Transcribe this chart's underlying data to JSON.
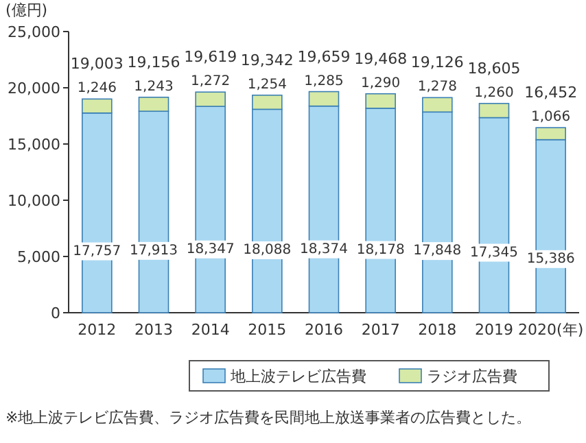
{
  "chart_data": {
    "type": "bar",
    "stacked": true,
    "ylabel": "(億円)",
    "categories": [
      "2012",
      "2013",
      "2014",
      "2015",
      "2016",
      "2017",
      "2018",
      "2019",
      "2020(年)"
    ],
    "series": [
      {
        "name": "地上波テレビ広告費",
        "color": "#a9d8f2",
        "values": [
          17757,
          17913,
          18347,
          18088,
          18374,
          18178,
          17848,
          17345,
          15386
        ],
        "value_labels": [
          "17,757",
          "17,913",
          "18,347",
          "18,088",
          "18,374",
          "18,178",
          "17,848",
          "17,345",
          "15,386"
        ]
      },
      {
        "name": "ラジオ広告費",
        "color": "#d6e9a6",
        "values": [
          1246,
          1243,
          1272,
          1254,
          1285,
          1290,
          1278,
          1260,
          1066
        ],
        "value_labels": [
          "1,246",
          "1,243",
          "1,272",
          "1,254",
          "1,285",
          "1,290",
          "1,278",
          "1,260",
          "1,066"
        ]
      }
    ],
    "totals": [
      "19,003",
      "19,156",
      "19,619",
      "19,342",
      "19,659",
      "19,468",
      "19,126",
      "18,605",
      "16,452"
    ],
    "ylim": [
      0,
      25000
    ],
    "yticks": [
      {
        "value": 0,
        "label": "0"
      },
      {
        "value": 5000,
        "label": "5,000"
      },
      {
        "value": 10000,
        "label": "10,000"
      },
      {
        "value": 15000,
        "label": "15,000"
      },
      {
        "value": 20000,
        "label": "20,000"
      },
      {
        "value": 25000,
        "label": "25,000"
      }
    ],
    "legend": "bottom",
    "annotations": [
      "※地上波テレビ広告費、ラジオ広告費を民間地上放送事業者の広告費とした。"
    ]
  }
}
